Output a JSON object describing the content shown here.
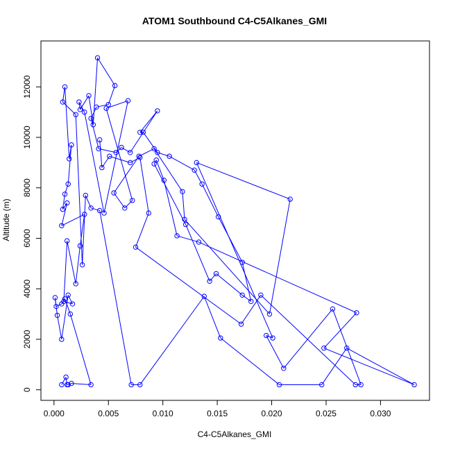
{
  "chart_data": {
    "type": "line",
    "title": "ATOM1 Southbound C4-C5Alkanes_GMI",
    "xlabel": "C4-C5Alkanes_GMI",
    "ylabel": "Altitude (m)",
    "xlim": [
      -0.0012,
      0.0345
    ],
    "ylim": [
      -420,
      13820
    ],
    "xticks": [
      0.0,
      0.005,
      0.01,
      0.015,
      0.02,
      0.025,
      0.03
    ],
    "xtick_labels": [
      "0.000",
      "0.005",
      "0.010",
      "0.015",
      "0.020",
      "0.025",
      "0.030"
    ],
    "yticks": [
      0,
      2000,
      4000,
      6000,
      8000,
      10000,
      12000
    ],
    "ytick_labels": [
      "0",
      "2000",
      "4000",
      "6000",
      "8000",
      "10000",
      "12000"
    ],
    "grid": false,
    "legend": "none",
    "series": [
      {
        "color": "#0000ff",
        "marker": "open-circle",
        "points": [
          [
            0.0007,
            200
          ],
          [
            0.0011,
            500
          ],
          [
            0.0012,
            200
          ],
          [
            0.0013,
            200
          ],
          [
            0.0016,
            250
          ],
          [
            0.0034,
            200
          ],
          [
            0.0015,
            3000
          ],
          [
            0.001,
            3600
          ],
          [
            0.0007,
            3400
          ],
          [
            0.0002,
            3300
          ],
          [
            0.0001,
            3650
          ],
          [
            0.0003,
            2950
          ],
          [
            0.0007,
            2000
          ],
          [
            0.0013,
            3750
          ],
          [
            0.0017,
            3400
          ],
          [
            0.0009,
            3500
          ],
          [
            0.0012,
            5900
          ],
          [
            0.002,
            4200
          ],
          [
            0.0024,
            5700
          ],
          [
            0.0028,
            6950
          ],
          [
            0.0007,
            6500
          ],
          [
            0.0012,
            7400
          ],
          [
            0.0008,
            7150
          ],
          [
            0.001,
            7750
          ],
          [
            0.0013,
            8150
          ],
          [
            0.0016,
            9700
          ],
          [
            0.0014,
            9150
          ],
          [
            0.001,
            12000
          ],
          [
            0.0008,
            11400
          ],
          [
            0.002,
            10900
          ],
          [
            0.0026,
            4950
          ],
          [
            0.0029,
            7700
          ],
          [
            0.0034,
            7200
          ],
          [
            0.0042,
            7100
          ],
          [
            0.0071,
            200
          ],
          [
            0.0079,
            200
          ],
          [
            0.0138,
            3700
          ],
          [
            0.0153,
            2050
          ],
          [
            0.0207,
            200
          ],
          [
            0.0246,
            200
          ],
          [
            0.0269,
            1650
          ],
          [
            0.0331,
            200
          ],
          [
            0.0248,
            1650
          ],
          [
            0.0278,
            3050
          ],
          [
            0.0133,
            5850
          ],
          [
            0.0113,
            6100
          ],
          [
            0.0101,
            8300
          ],
          [
            0.0094,
            9100
          ],
          [
            0.0092,
            8950
          ],
          [
            0.0121,
            6550
          ],
          [
            0.0143,
            4300
          ],
          [
            0.0149,
            4600
          ],
          [
            0.0173,
            3750
          ],
          [
            0.0181,
            3500
          ],
          [
            0.0173,
            5050
          ],
          [
            0.0151,
            6850
          ],
          [
            0.0136,
            8150
          ],
          [
            0.0129,
            8700
          ],
          [
            0.0106,
            9250
          ],
          [
            0.0095,
            9400
          ],
          [
            0.0082,
            10200
          ],
          [
            0.0079,
            10200
          ],
          [
            0.0095,
            11050
          ],
          [
            0.007,
            9400
          ],
          [
            0.0062,
            9600
          ],
          [
            0.0057,
            9400
          ],
          [
            0.0041,
            9550
          ],
          [
            0.0034,
            10750
          ],
          [
            0.0039,
            11200
          ],
          [
            0.005,
            11300
          ],
          [
            0.0056,
            12050
          ],
          [
            0.004,
            13150
          ],
          [
            0.0036,
            10500
          ],
          [
            0.0032,
            11650
          ],
          [
            0.0024,
            11100
          ],
          [
            0.0023,
            11400
          ],
          [
            0.0028,
            11000
          ],
          [
            0.0046,
            7000
          ],
          [
            0.0068,
            11450
          ],
          [
            0.0048,
            11150
          ],
          [
            0.0072,
            7500
          ],
          [
            0.0065,
            7200
          ],
          [
            0.0055,
            7800
          ],
          [
            0.0078,
            9250
          ],
          [
            0.0092,
            9550
          ],
          [
            0.0118,
            7850
          ],
          [
            0.012,
            6750
          ],
          [
            0.0198,
            3000
          ],
          [
            0.0217,
            7550
          ],
          [
            0.0131,
            9000
          ],
          [
            0.0201,
            2050
          ],
          [
            0.0195,
            2150
          ],
          [
            0.0211,
            850
          ],
          [
            0.0256,
            3200
          ],
          [
            0.0282,
            200
          ],
          [
            0.0277,
            200
          ],
          [
            0.019,
            3750
          ],
          [
            0.0172,
            2600
          ],
          [
            0.0075,
            5650
          ],
          [
            0.0087,
            7000
          ],
          [
            0.0079,
            9200
          ],
          [
            0.007,
            9000
          ],
          [
            0.0051,
            9250
          ],
          [
            0.0044,
            8800
          ],
          [
            0.0042,
            9900
          ]
        ]
      }
    ]
  }
}
